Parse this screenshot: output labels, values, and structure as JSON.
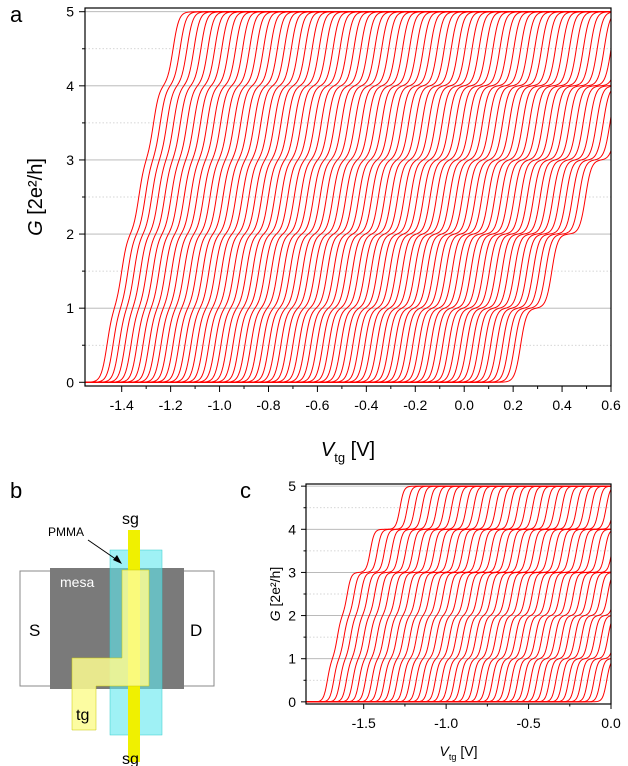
{
  "panels": {
    "a": "a",
    "b": "b",
    "c": "c"
  },
  "chart_data": [
    {
      "panel": "a",
      "type": "line",
      "xlabel": "V",
      "xlabel_sub": "tg",
      "xlabel_unit": "[V]",
      "ylabel": "G",
      "ylabel_unit": "[2e²/h]",
      "xlim": [
        -1.55,
        0.6
      ],
      "ylim": [
        -0.05,
        5.05
      ],
      "xticks": [
        -1.4,
        -1.2,
        -1.0,
        -0.8,
        -0.6,
        -0.4,
        -0.2,
        0.0,
        0.2,
        0.4,
        0.6
      ],
      "xtick_labels": [
        "-1.4",
        "-1.2",
        "-1.0",
        "-0.8",
        "-0.6",
        "-0.4",
        "-0.2",
        "0.0",
        "0.2",
        "0.4",
        "0.6"
      ],
      "yticks": [
        0,
        1,
        2,
        3,
        4,
        5
      ],
      "ytick_labels": [
        "0",
        "1",
        "2",
        "3",
        "4",
        "5"
      ],
      "grid": {
        "integer_lines": "solid",
        "half_integer_lines": "dotted"
      },
      "series_color": "#ff0000",
      "n_traces": 70,
      "first_trace_step_positions": [
        -1.46,
        -1.4,
        -1.33,
        -1.27,
        -1.19
      ],
      "trace_offset": 0.0245,
      "plateaus": [
        1,
        2,
        3,
        4,
        5
      ]
    },
    {
      "panel": "c",
      "type": "line",
      "xlabel": "V",
      "xlabel_sub": "tg",
      "xlabel_unit": "[V]",
      "ylabel": "G",
      "ylabel_unit": "[2e²/h]",
      "xlim": [
        -1.85,
        0.0
      ],
      "ylim": [
        -0.05,
        5.05
      ],
      "xticks": [
        -1.5,
        -1.0,
        -0.5,
        0.0
      ],
      "xtick_labels": [
        "-1.5",
        "-1.0",
        "-0.5",
        "0.0"
      ],
      "yticks": [
        0,
        1,
        2,
        3,
        4,
        5
      ],
      "ytick_labels": [
        "0",
        "1",
        "2",
        "3",
        "4",
        "5"
      ],
      "grid": {
        "integer_lines": "solid",
        "half_integer_lines": "dotted"
      },
      "series_color": "#ff0000",
      "n_traces": 45,
      "first_trace_step_positions": [
        -1.72,
        -1.66,
        -1.6,
        -1.46,
        -1.28
      ],
      "trace_offset": 0.0385,
      "plateaus": [
        1,
        2,
        3,
        4,
        5
      ]
    }
  ],
  "schematic": {
    "labels": {
      "source": "S",
      "drain": "D",
      "mesa": "mesa",
      "pmma": "PMMA",
      "side_gate_top": "sg",
      "side_gate_bottom": "sg",
      "top_gate": "tg"
    },
    "colors": {
      "mesa": "#7a7a7a",
      "pmma": "#5fe8ee",
      "side_gate": "#f0f000",
      "top_gate": "#fcfc90",
      "contact": "#ffffff"
    }
  }
}
